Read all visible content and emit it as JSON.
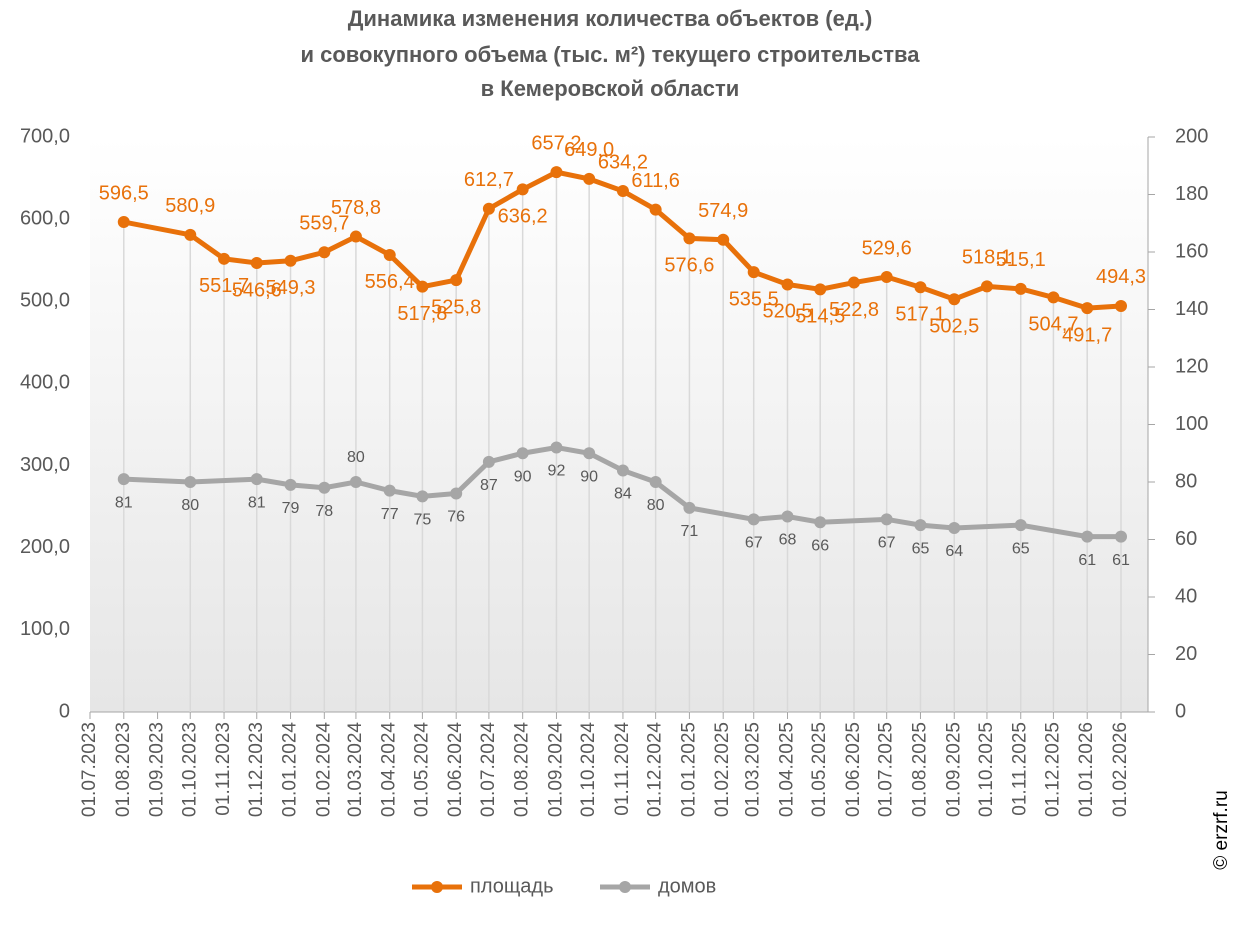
{
  "chart_data": {
    "type": "line",
    "title": [
      "Динамика изменения количества объектов (ед.)",
      "и совокупного объема (тыс. м²) текущего строительства",
      "в Кемеровской области"
    ],
    "xlim": [
      "01.07.2023",
      "01.02.2026"
    ],
    "xticks": [
      "01.07.2023",
      "01.08.2023",
      "01.09.2023",
      "01.10.2023",
      "01.11.2023",
      "01.12.2023",
      "01.01.2024",
      "01.02.2024",
      "01.03.2024",
      "01.04.2024",
      "01.05.2024",
      "01.06.2024",
      "01.07.2024",
      "01.08.2024",
      "01.09.2024",
      "01.10.2024",
      "01.11.2024",
      "01.12.2024",
      "01.01.2025",
      "01.02.2025",
      "01.03.2025",
      "01.04.2025",
      "01.05.2025",
      "01.06.2025",
      "01.07.2025",
      "01.08.2025",
      "01.09.2025",
      "01.10.2025",
      "01.11.2025",
      "01.12.2025",
      "01.01.2026",
      "01.02.2026"
    ],
    "ylim": [
      0,
      700
    ],
    "yticks": [
      0,
      {
        "value": 100,
        "label": "100,0"
      },
      {
        "value": 200,
        "label": "200,0"
      },
      {
        "value": 300,
        "label": "300,0"
      },
      {
        "value": 400,
        "label": "400,0"
      },
      {
        "value": 500,
        "label": "500,0"
      },
      {
        "value": 600,
        "label": "600,0"
      },
      {
        "value": 700,
        "label": "700,0"
      }
    ],
    "y2lim": [
      0,
      200
    ],
    "y2ticks": [
      0,
      20,
      40,
      60,
      80,
      100,
      120,
      140,
      160,
      180,
      200
    ],
    "series": [
      {
        "name": "площадь",
        "color": "#e8710a",
        "x": [
          "01.08.2023",
          "01.10.2023",
          "01.11.2023",
          "01.12.2023",
          "01.01.2024",
          "01.02.2024",
          "01.03.2024",
          "01.04.2024",
          "01.05.2024",
          "01.06.2024",
          "01.07.2024",
          "01.08.2024",
          "01.09.2024",
          "01.10.2024",
          "01.11.2024",
          "01.12.2024",
          "01.01.2025",
          "01.02.2025",
          "01.03.2025",
          "01.04.2025",
          "01.05.2025",
          "01.06.2025",
          "01.07.2025",
          "01.08.2025",
          "01.09.2025",
          "01.10.2025",
          "01.11.2025",
          "01.12.2025",
          "01.01.2026",
          "01.02.2026"
        ],
        "values": [
          596.5,
          580.9,
          551.7,
          546.6,
          549.3,
          559.7,
          578.8,
          556.4,
          517.8,
          525.8,
          612.7,
          636.2,
          657.2,
          649.0,
          634.2,
          611.6,
          576.6,
          574.9,
          535.5,
          520.5,
          514.5,
          522.8,
          529.6,
          517.1,
          502.5,
          518.1,
          515.1,
          504.7,
          491.7,
          494.3
        ],
        "value_labels": [
          "596,5",
          "580,9",
          "551,7",
          "546,6",
          "549,3",
          "559,7",
          "578,8",
          "556,4",
          "517,8",
          "525,8",
          "612,7",
          "636,2",
          "657,2",
          "649,0",
          "634,2",
          "611,6",
          "576,6",
          "574,9",
          "535,5",
          "520,5",
          "514,5",
          "522,8",
          "529,6",
          "517,1",
          "502,5",
          "518,1",
          "515,1",
          "504,7",
          "491,7",
          "494,3"
        ]
      },
      {
        "name": "домов",
        "color": "#a6a6a6",
        "axis": "y2",
        "x": [
          "01.08.2023",
          "01.10.2023",
          "01.12.2023",
          "01.01.2024",
          "01.02.2024",
          "01.03.2024",
          "01.04.2024",
          "01.05.2024",
          "01.06.2024",
          "01.07.2024",
          "01.08.2024",
          "01.09.2024",
          "01.10.2024",
          "01.11.2024",
          "01.12.2024",
          "01.01.2025",
          "01.03.2025",
          "01.04.2025",
          "01.05.2025",
          "01.07.2025",
          "01.08.2025",
          "01.09.2025",
          "01.11.2025",
          "01.01.2026",
          "01.02.2026"
        ],
        "values": [
          81,
          80,
          81,
          79,
          78,
          80,
          77,
          75,
          76,
          87,
          90,
          92,
          90,
          84,
          80,
          71,
          67,
          68,
          66,
          67,
          65,
          64,
          65,
          61,
          61
        ]
      }
    ],
    "watermark": "© erzrf.ru"
  }
}
